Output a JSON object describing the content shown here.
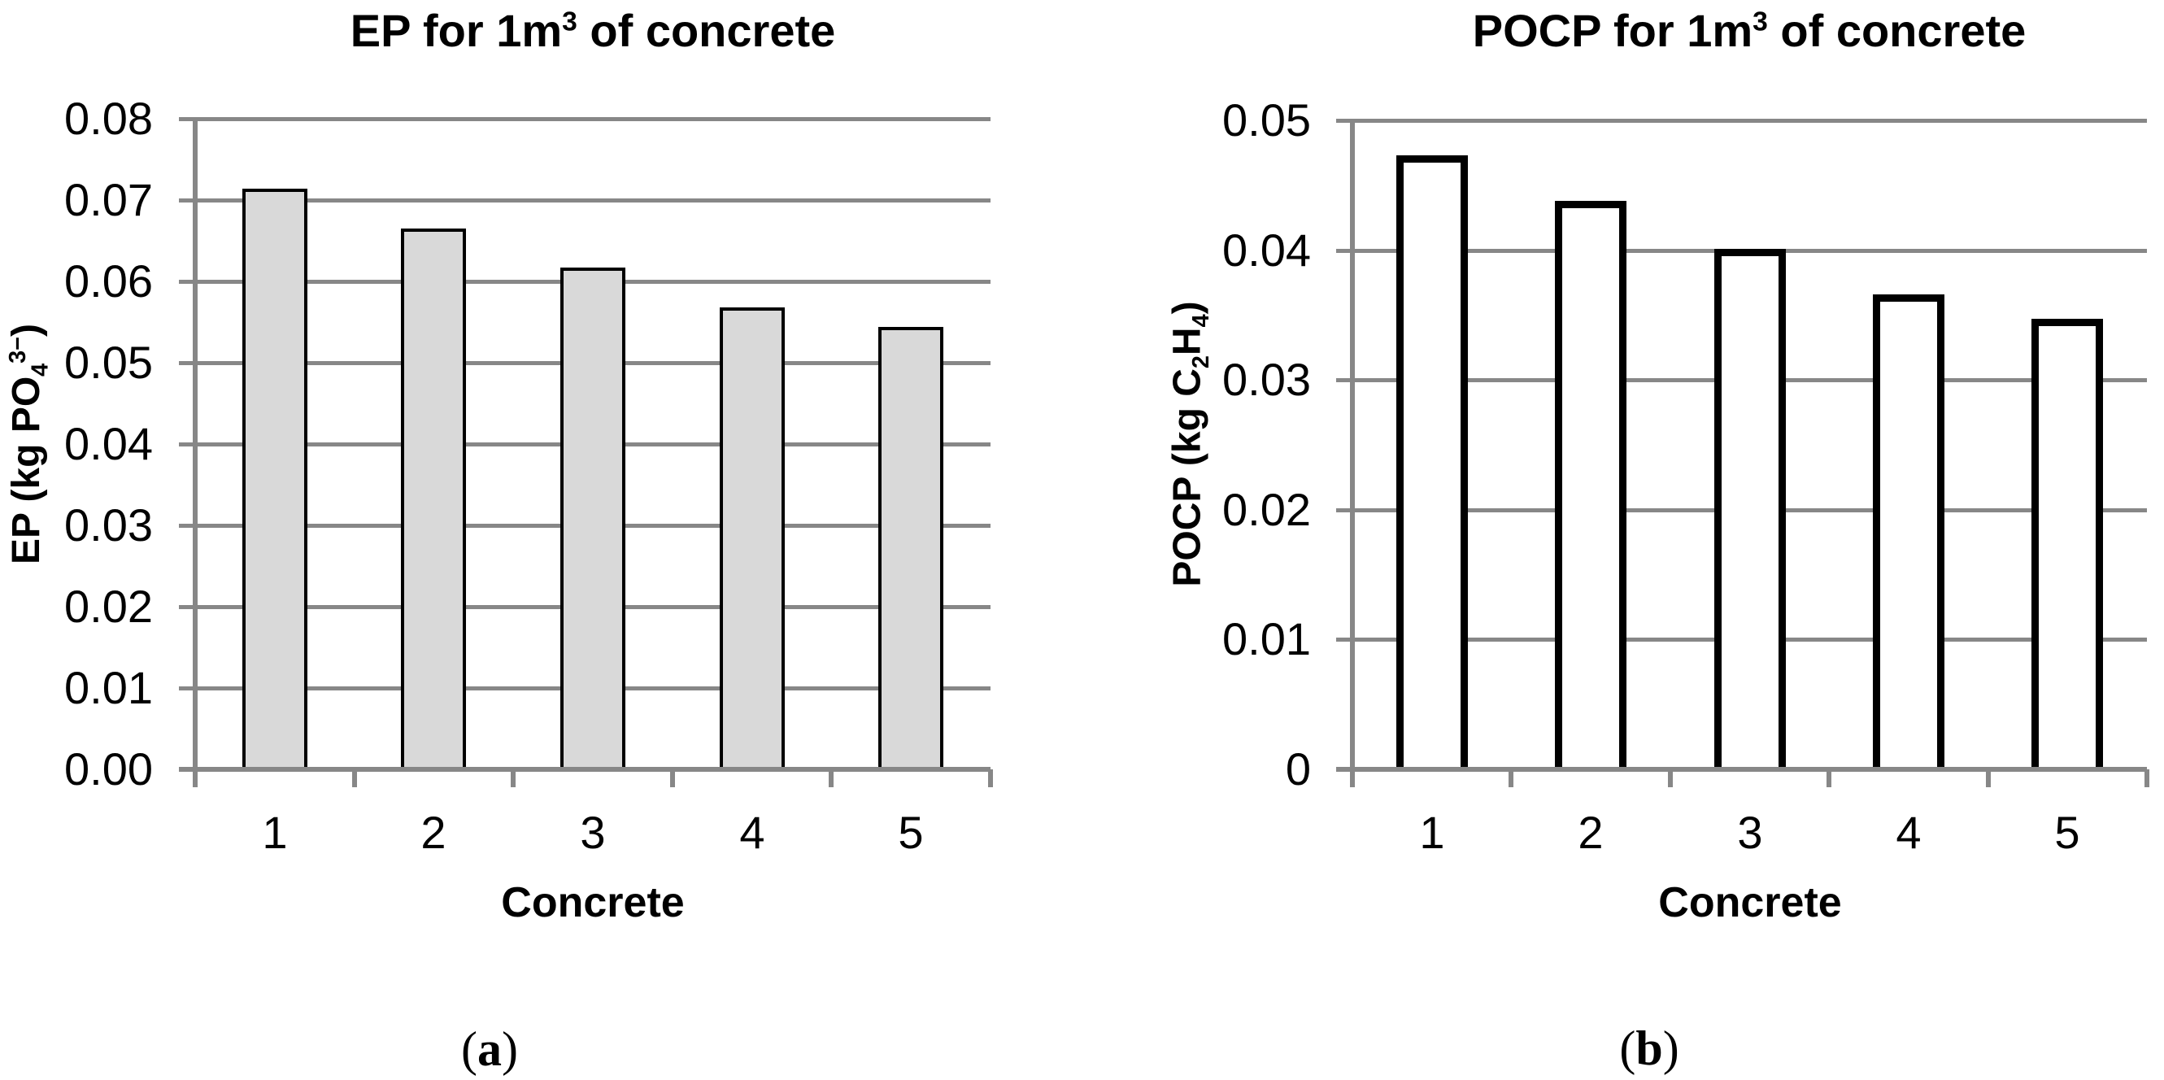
{
  "figure": {
    "background": "#ffffff",
    "grid_color": "#878787",
    "axis_color": "#878787",
    "text_color": "#000000",
    "captions": [
      {
        "open": "(",
        "letter": "a",
        "close": ")"
      },
      {
        "open": "(",
        "letter": "b",
        "close": ")"
      }
    ]
  },
  "chart_data": [
    {
      "type": "bar",
      "panel": "a",
      "title_segments": [
        {
          "t": "EP for 1m"
        },
        {
          "t": "3",
          "style": "sup"
        },
        {
          "t": " of concrete"
        }
      ],
      "ylabel_segments": [
        {
          "t": "EP (kg PO"
        },
        {
          "t": "4",
          "style": "sub"
        },
        {
          "t": "3−",
          "style": "sup"
        },
        {
          "t": ")"
        }
      ],
      "xlabel": "Concrete",
      "categories": [
        "1",
        "2",
        "3",
        "4",
        "5"
      ],
      "values": [
        0.0714,
        0.0665,
        0.0617,
        0.0568,
        0.0544
      ],
      "ylim": [
        0,
        0.08
      ],
      "ytick_step": 0.01,
      "ytick_labels": [
        "0.00",
        "0.01",
        "0.02",
        "0.03",
        "0.04",
        "0.05",
        "0.06",
        "0.07",
        "0.08"
      ],
      "grid": true,
      "legend": "none",
      "bar_fill": "#D9D9D9",
      "bar_border_color": "#000000"
    },
    {
      "type": "bar",
      "panel": "b",
      "title_segments": [
        {
          "t": "POCP for 1m"
        },
        {
          "t": "3",
          "style": "sup"
        },
        {
          "t": " of concrete"
        }
      ],
      "ylabel_segments": [
        {
          "t": "POCP (kg C"
        },
        {
          "t": "2",
          "style": "sub"
        },
        {
          "t": "H"
        },
        {
          "t": "4",
          "style": "sub"
        },
        {
          "t": ")"
        }
      ],
      "xlabel": "Concrete",
      "categories": [
        "1",
        "2",
        "3",
        "4",
        "5"
      ],
      "values": [
        0.0473,
        0.0438,
        0.0401,
        0.0366,
        0.0347
      ],
      "ylim": [
        0,
        0.05
      ],
      "ytick_step": 0.01,
      "ytick_labels": [
        "0",
        "0.01",
        "0.02",
        "0.03",
        "0.04",
        "0.05"
      ],
      "grid": true,
      "legend": "none",
      "bar_fill": "#FFFFFF",
      "bar_border_color": "#000000"
    }
  ]
}
